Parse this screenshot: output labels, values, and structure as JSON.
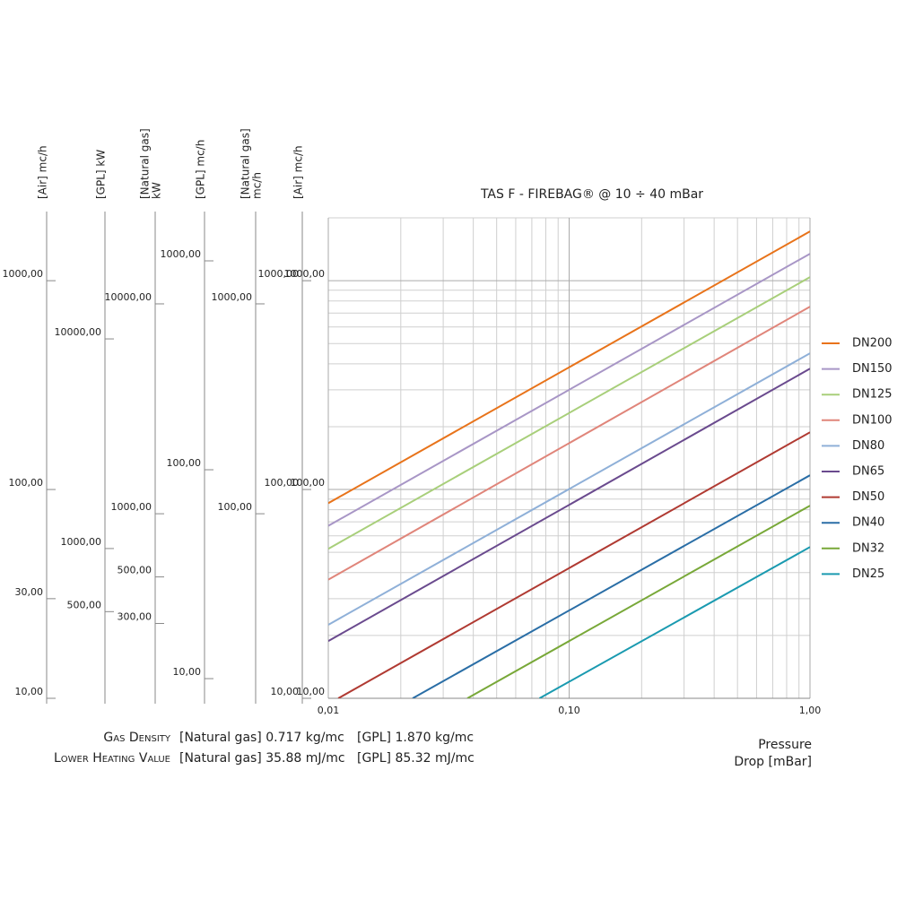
{
  "chart_data": {
    "type": "line",
    "title": "TAS F - FIREBAG® @ 10 ÷ 40 mBar",
    "xlabel_lines": [
      "Pressure",
      "Drop [mBar]"
    ],
    "log_x": true,
    "log_y": true,
    "grid": true,
    "xlim": [
      0.01,
      1
    ],
    "ylim": [
      10,
      2000
    ],
    "xticks": [
      {
        "value": 0.01,
        "label": "0,01"
      },
      {
        "value": 0.1,
        "label": "0,10"
      },
      {
        "value": 1,
        "label": "1,00"
      }
    ],
    "yticks": [
      {
        "value": 10,
        "label": "10,00"
      },
      {
        "value": 100,
        "label": "100,00"
      },
      {
        "value": 1000,
        "label": "1000,00"
      }
    ],
    "x_minor_ticks": [
      0.02,
      0.03,
      0.04,
      0.05,
      0.06,
      0.07,
      0.08,
      0.09,
      0.2,
      0.3,
      0.4,
      0.5,
      0.6,
      0.7,
      0.8,
      0.9
    ],
    "y_minor_ticks": [
      20,
      30,
      40,
      50,
      60,
      70,
      80,
      90,
      200,
      300,
      400,
      500,
      600,
      700,
      800,
      900,
      2000
    ],
    "legend": "right",
    "series": [
      {
        "name": "DN200",
        "color": "#e8731a",
        "x": [
          0.01,
          1
        ],
        "values": [
          86,
          1722
        ]
      },
      {
        "name": "DN150",
        "color": "#a896c6",
        "x": [
          0.01,
          1
        ],
        "values": [
          67,
          1346
        ]
      },
      {
        "name": "DN125",
        "color": "#a8cf7a",
        "x": [
          0.01,
          1
        ],
        "values": [
          52,
          1040
        ]
      },
      {
        "name": "DN100",
        "color": "#e0857a",
        "x": [
          0.01,
          1
        ],
        "values": [
          37,
          751
        ]
      },
      {
        "name": "DN80",
        "color": "#8fb0d8",
        "x": [
          0.01,
          1
        ],
        "values": [
          22.5,
          449
        ]
      },
      {
        "name": "DN65",
        "color": "#6a4a8e",
        "x": [
          0.01,
          1
        ],
        "values": [
          18.8,
          379
        ]
      },
      {
        "name": "DN50",
        "color": "#b03a32",
        "x": [
          0.011,
          1
        ],
        "values": [
          10,
          188
        ]
      },
      {
        "name": "DN40",
        "color": "#2a6ea6",
        "x": [
          0.0224,
          1
        ],
        "values": [
          10,
          117
        ]
      },
      {
        "name": "DN32",
        "color": "#78a838",
        "x": [
          0.0378,
          1
        ],
        "values": [
          10,
          83.7
        ]
      },
      {
        "name": "DN25",
        "color": "#1a9ab0",
        "x": [
          0.0753,
          1
        ],
        "values": [
          10,
          53
        ]
      }
    ],
    "side_axes": [
      {
        "label_lines": [
          "[Air] mc/h"
        ],
        "ylim": [
          10,
          2000
        ],
        "yticks": [
          {
            "value": 1000,
            "label": "1000,00"
          },
          {
            "value": 100,
            "label": "100,00"
          },
          {
            "value": 30,
            "label": "30,00"
          },
          {
            "value": 10,
            "label": "10,00"
          }
        ]
      },
      {
        "label_lines": [
          "[GPL] kW"
        ],
        "ylim": [
          193,
          37800
        ],
        "yticks": [
          {
            "value": 10000,
            "label": "10000,00"
          },
          {
            "value": 1000,
            "label": "1000,00"
          },
          {
            "value": 500,
            "label": "500,00"
          }
        ]
      },
      {
        "label_lines": [
          "[Natural gas]",
          "kW"
        ],
        "ylim": [
          132,
          25700
        ],
        "yticks": [
          {
            "value": 10000,
            "label": "10000,00"
          },
          {
            "value": 1000,
            "label": "1000,00"
          },
          {
            "value": 500,
            "label": "500,00"
          },
          {
            "value": 300,
            "label": "300,00"
          }
        ]
      },
      {
        "label_lines": [
          "[GPL] mc/h"
        ],
        "ylim": [
          8.05,
          1607
        ],
        "yticks": [
          {
            "value": 1000,
            "label": "1000,00"
          },
          {
            "value": 100,
            "label": "100,00"
          },
          {
            "value": 10,
            "label": "10,00"
          }
        ]
      },
      {
        "label_lines": [
          "[Natural gas]",
          "mc/h"
        ],
        "ylim": [
          13.2,
          2570
        ],
        "yticks": [
          {
            "value": 1000,
            "label": "1000,00"
          },
          {
            "value": 100,
            "label": "100,00"
          }
        ]
      },
      {
        "label_lines": [
          "[Air] mc/h"
        ],
        "ylim": [
          10,
          2000
        ],
        "yticks": [
          {
            "value": 1000,
            "label": "1000,00"
          },
          {
            "value": 100,
            "label": "100,00"
          },
          {
            "value": 10,
            "label": "10,00"
          }
        ]
      }
    ],
    "notes": [
      {
        "label": "Gas Density",
        "natural_gas": "[Natural gas] 0.717 kg/mc",
        "gpl": "[GPL] 1.870 kg/mc"
      },
      {
        "label": "Lower Heating Value",
        "natural_gas": "[Natural gas] 35.88 mJ/mc",
        "gpl": "[GPL] 85.32 mJ/mc"
      }
    ]
  }
}
